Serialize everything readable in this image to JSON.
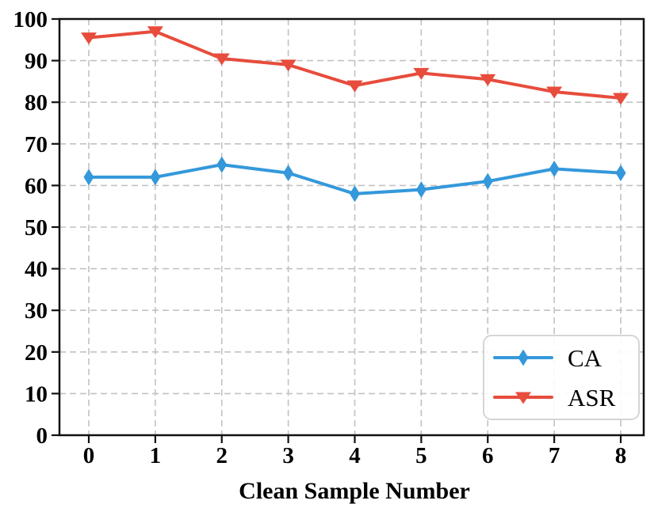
{
  "chart_data": {
    "type": "line",
    "title": "",
    "xlabel": "Clean Sample Number",
    "ylabel": "",
    "x": [
      0,
      1,
      2,
      3,
      4,
      5,
      6,
      7,
      8
    ],
    "x_tick_labels": [
      "0",
      "1",
      "2",
      "3",
      "4",
      "5",
      "6",
      "7",
      "8"
    ],
    "y_ticks": [
      0,
      10,
      20,
      30,
      40,
      50,
      60,
      70,
      80,
      90,
      100
    ],
    "y_tick_labels": [
      "0",
      "10",
      "20",
      "30",
      "40",
      "50",
      "60",
      "70",
      "80",
      "90",
      "100"
    ],
    "ylim": [
      0,
      100
    ],
    "grid": true,
    "grid_style": "dashed",
    "legend_position": "lower right",
    "series": [
      {
        "name": "CA",
        "color": "#3498db",
        "marker": "thin-diamond",
        "values": [
          62,
          62,
          65,
          63,
          58,
          59,
          61,
          64,
          63
        ]
      },
      {
        "name": "ASR",
        "color": "#e74c3c",
        "marker": "triangle-down",
        "values": [
          95.5,
          97,
          90.5,
          89,
          84,
          87,
          85.5,
          82.5,
          81
        ]
      }
    ]
  },
  "colors": {
    "grid": "#c2c2c2",
    "spine": "#111111",
    "legend_border": "#d5d5d5",
    "background": "#ffffff"
  }
}
